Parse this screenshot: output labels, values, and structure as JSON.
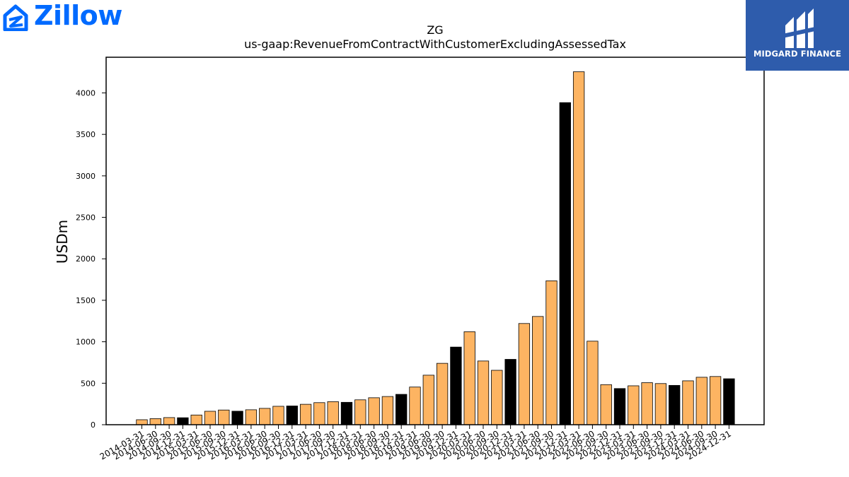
{
  "logos": {
    "left_brand": "Zillow",
    "right_brand": "MIDGARD FINANCE"
  },
  "colors": {
    "bar_default": "#fdb462",
    "bar_highlight": "#000000",
    "zillow_blue": "#006aff",
    "midgard_blue": "#2e5cac"
  },
  "chart_data": {
    "type": "bar",
    "title": "ZG",
    "subtitle": "us-gaap:RevenueFromContractWithCustomerExcludingAssessedTax",
    "xlabel": "",
    "ylabel": "USDm",
    "ylim": [
      0,
      4430
    ],
    "yticks": [
      0,
      500,
      1000,
      1500,
      2000,
      2500,
      3000,
      3500,
      4000
    ],
    "grid": false,
    "categories": [
      "2014-03-31",
      "2014-06-30",
      "2014-09-30",
      "2014-12-31",
      "2015-03-31",
      "2015-06-30",
      "2015-09-30",
      "2015-12-31",
      "2016-03-31",
      "2016-06-30",
      "2016-09-30",
      "2016-12-31",
      "2017-03-31",
      "2017-06-30",
      "2017-09-30",
      "2017-12-31",
      "2018-03-31",
      "2018-06-30",
      "2018-09-30",
      "2018-12-31",
      "2019-03-31",
      "2019-06-30",
      "2019-09-30",
      "2019-12-31",
      "2020-03-31",
      "2020-06-30",
      "2020-09-30",
      "2020-12-31",
      "2021-03-31",
      "2021-06-30",
      "2021-09-30",
      "2021-12-31",
      "2022-03-31",
      "2022-06-30",
      "2022-09-30",
      "2022-12-31",
      "2023-03-31",
      "2023-06-30",
      "2023-09-30",
      "2023-12-31",
      "2024-03-31",
      "2024-06-30",
      "2024-09-30",
      "2024-12-31"
    ],
    "values": [
      60,
      73,
      86,
      84,
      117,
      162,
      177,
      163,
      180,
      197,
      222,
      226,
      246,
      266,
      278,
      270,
      300,
      325,
      340,
      366,
      454,
      597,
      740,
      936,
      1121,
      768,
      656,
      788,
      1220,
      1305,
      1735,
      3883,
      4255,
      1007,
      483,
      436,
      469,
      507,
      496,
      474,
      529,
      572,
      581,
      554
    ],
    "highlight": [
      false,
      false,
      false,
      true,
      false,
      false,
      false,
      true,
      false,
      false,
      false,
      true,
      false,
      false,
      false,
      true,
      false,
      false,
      false,
      true,
      false,
      false,
      false,
      true,
      false,
      false,
      false,
      true,
      false,
      false,
      false,
      true,
      false,
      false,
      false,
      true,
      false,
      false,
      false,
      true,
      false,
      false,
      false,
      true
    ]
  }
}
